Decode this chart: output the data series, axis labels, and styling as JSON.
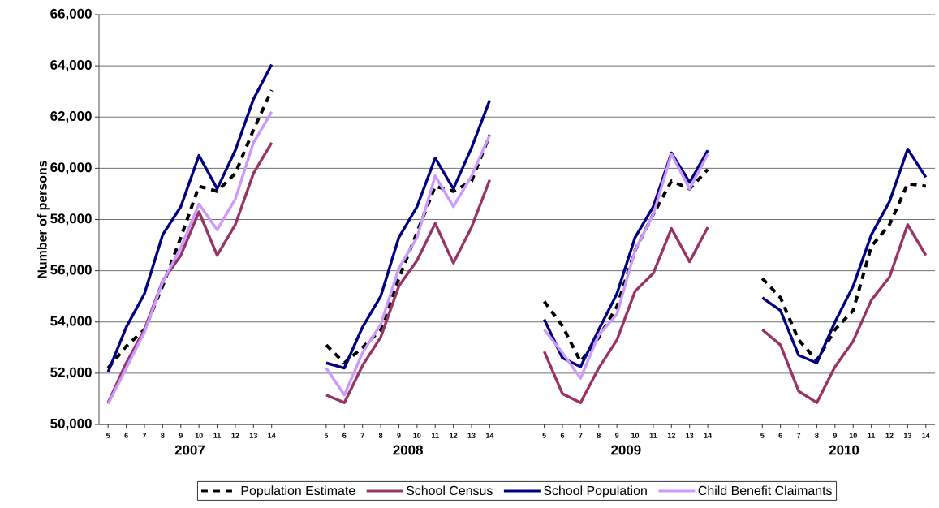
{
  "chart_data": {
    "type": "line",
    "ylabel": "Number of persons",
    "categories": [
      "5",
      "6",
      "7",
      "8",
      "9",
      "10",
      "11",
      "12",
      "13",
      "14",
      null,
      null,
      "5",
      "6",
      "7",
      "8",
      "9",
      "10",
      "11",
      "12",
      "13",
      "14",
      null,
      null,
      "5",
      "6",
      "7",
      "8",
      "9",
      "10",
      "11",
      "12",
      "13",
      "14",
      null,
      null,
      "5",
      "6",
      "7",
      "8",
      "9",
      "10",
      "11",
      "12",
      "13",
      "14"
    ],
    "annotations": [
      "2007",
      "2008",
      "2009",
      "2010"
    ],
    "ylim": [
      50000,
      66000
    ],
    "yticks": [
      {
        "value": 50000,
        "label": "50,000"
      },
      {
        "value": 52000,
        "label": "52,000"
      },
      {
        "value": 54000,
        "label": "54,000"
      },
      {
        "value": 56000,
        "label": "56,000"
      },
      {
        "value": 58000,
        "label": "58,000"
      },
      {
        "value": 60000,
        "label": "60,000"
      },
      {
        "value": 62000,
        "label": "62,000"
      },
      {
        "value": 64000,
        "label": "64,000"
      },
      {
        "value": 66000,
        "label": "66,000"
      }
    ],
    "grid": "y",
    "legend": "bottom",
    "marker": "none",
    "series": [
      {
        "name": "Population Estimate",
        "color": "#000000",
        "line_style": "dashed",
        "values": [
          52200,
          53050,
          53700,
          55400,
          57300,
          59300,
          59100,
          59800,
          61500,
          63050,
          null,
          null,
          53100,
          52400,
          53000,
          53700,
          55700,
          57500,
          59300,
          59100,
          59500,
          61300,
          null,
          null,
          54800,
          53850,
          52450,
          53400,
          54600,
          56800,
          58200,
          59500,
          59200,
          59950,
          null,
          null,
          55700,
          54950,
          53300,
          52500,
          53700,
          54450,
          56950,
          57800,
          59400,
          59300
        ]
      },
      {
        "name": "School Census",
        "color": "#993366",
        "line_style": "solid",
        "values": [
          50850,
          52400,
          53700,
          55600,
          56600,
          58300,
          56600,
          57800,
          59800,
          61000,
          null,
          null,
          51150,
          50850,
          52300,
          53400,
          55400,
          56400,
          57850,
          56300,
          57700,
          59550,
          null,
          null,
          52850,
          51200,
          50850,
          52200,
          53300,
          55200,
          55900,
          57650,
          56350,
          57700,
          null,
          null,
          53700,
          53100,
          51300,
          50850,
          52250,
          53250,
          54850,
          55750,
          57800,
          56600
        ]
      },
      {
        "name": "School Population",
        "color": "#000080",
        "line_style": "solid",
        "values": [
          52050,
          53800,
          55100,
          57400,
          58500,
          60500,
          59200,
          60700,
          62700,
          64050,
          null,
          null,
          52400,
          52200,
          53800,
          55000,
          57300,
          58500,
          60400,
          59200,
          60800,
          62650,
          null,
          null,
          54100,
          52600,
          52250,
          53700,
          55100,
          57300,
          58500,
          60600,
          59450,
          60700,
          null,
          null,
          54950,
          54450,
          52700,
          52400,
          54000,
          55400,
          57400,
          58700,
          60750,
          59650
        ]
      },
      {
        "name": "Child Benefit Claimants",
        "color": "#CC99FF",
        "line_style": "solid",
        "values": [
          50800,
          52200,
          53600,
          55550,
          56900,
          58600,
          57600,
          58800,
          61000,
          62200,
          null,
          null,
          52200,
          51150,
          52800,
          53900,
          56100,
          57300,
          59700,
          58500,
          59700,
          61300,
          null,
          null,
          53700,
          52800,
          51800,
          53500,
          54300,
          56800,
          58200,
          60550,
          59200,
          60550,
          null,
          null,
          null,
          null,
          null,
          null,
          null,
          null,
          null,
          null,
          null,
          null
        ]
      }
    ]
  }
}
